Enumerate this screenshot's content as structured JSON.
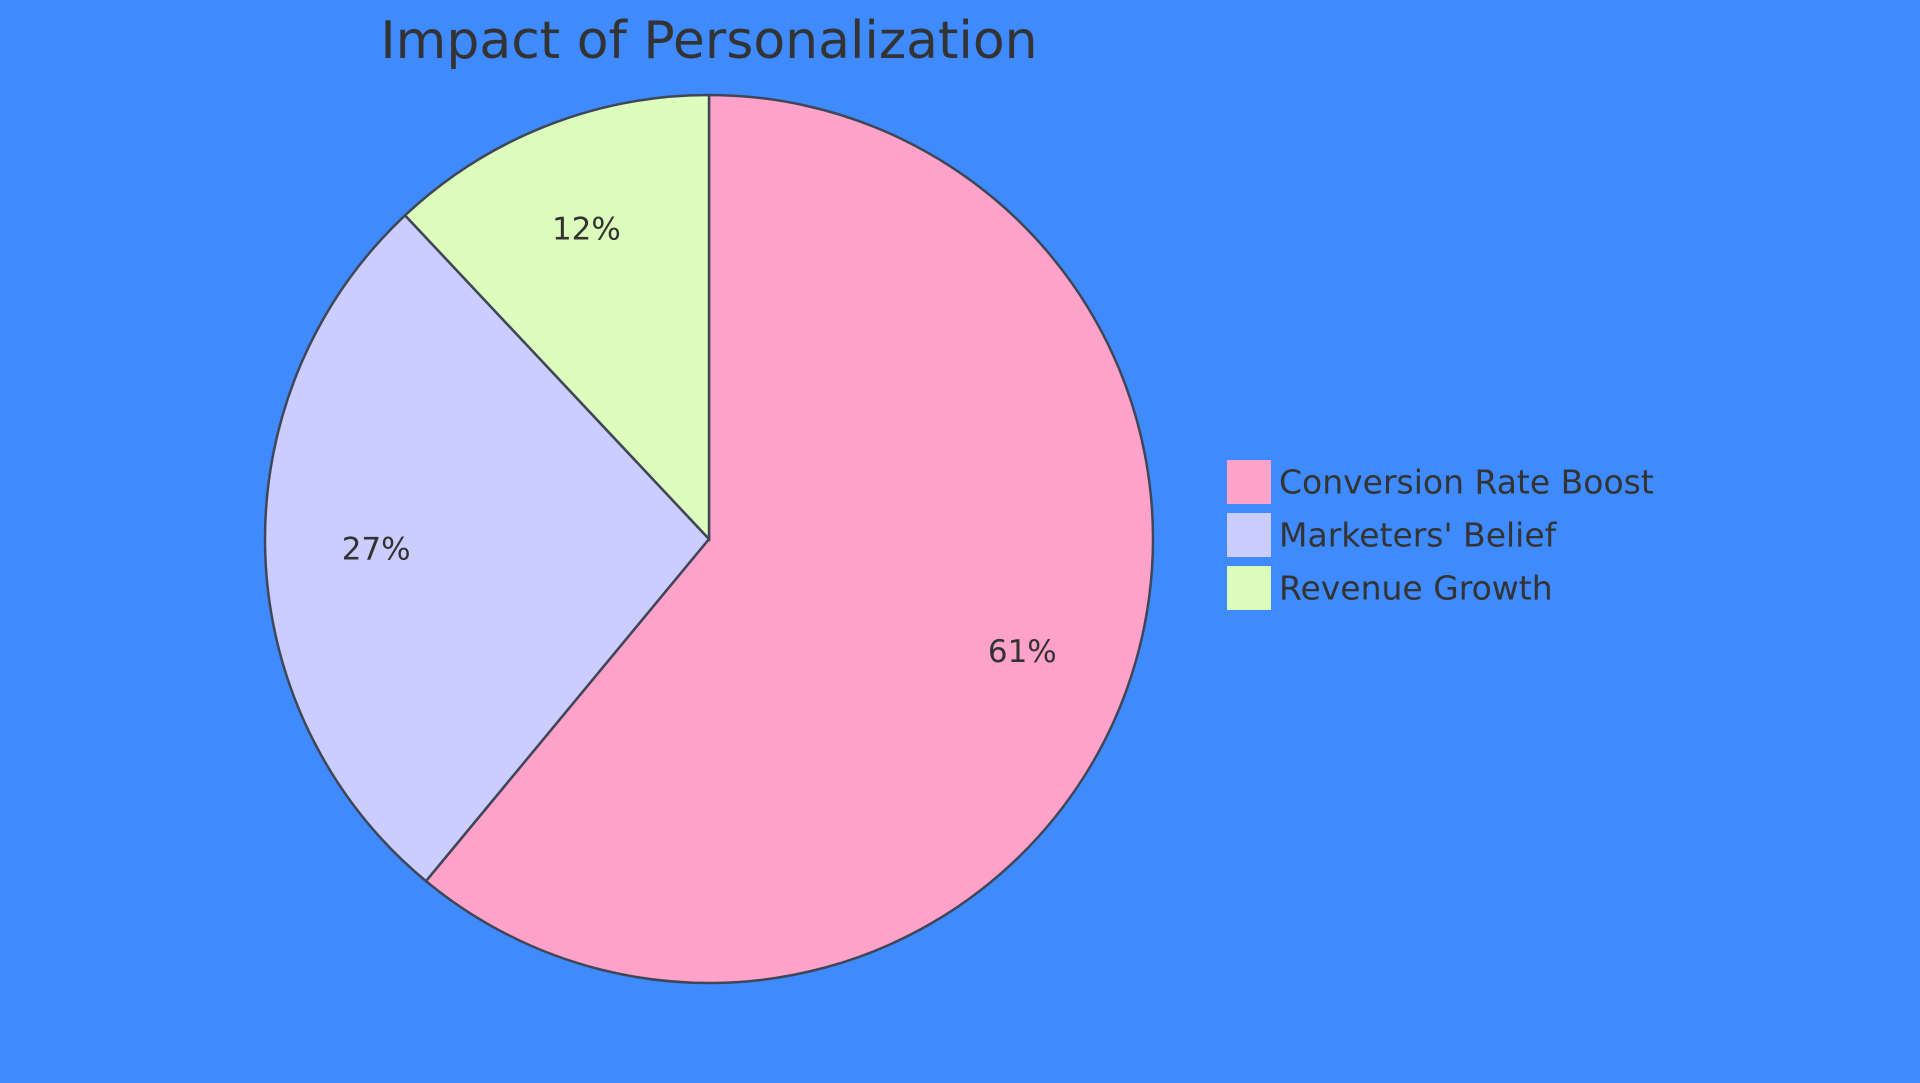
{
  "chart_data": {
    "type": "pie",
    "title": "Impact of Personalization",
    "slices": [
      {
        "name": "Conversion Rate Boost",
        "value": 61,
        "label": "61%",
        "color": "#ffa2c9"
      },
      {
        "name": "Marketers' Belief",
        "value": 27,
        "label": "27%",
        "color": "#cbccff"
      },
      {
        "name": "Revenue Growth",
        "value": 12,
        "label": "12%",
        "color": "#dcfdbb"
      }
    ],
    "legend_position": "right",
    "start_angle": "top",
    "direction": "clockwise"
  },
  "colors": {
    "background": "#3f8bfe",
    "outline": "#3f4657",
    "text": "#333333"
  }
}
